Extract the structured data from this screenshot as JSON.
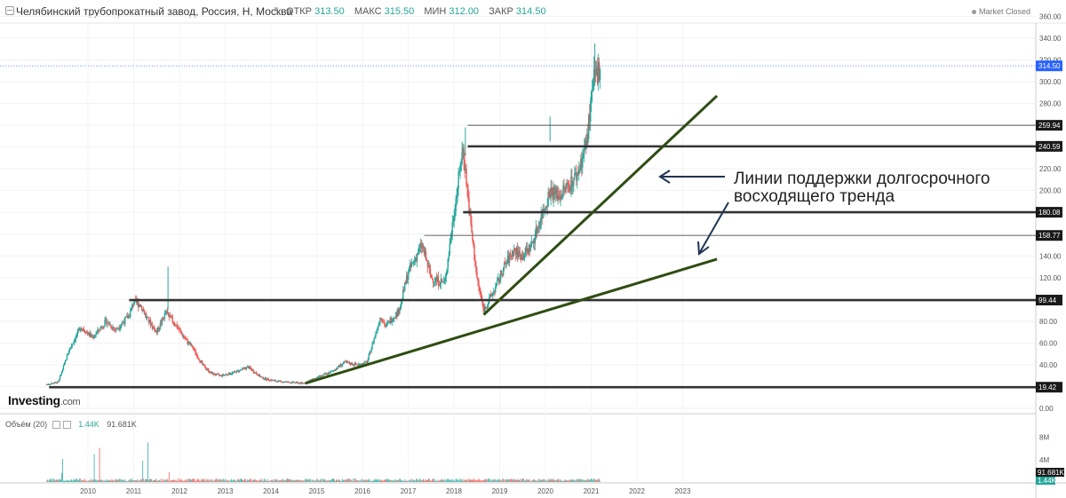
{
  "header": {
    "title": "Челябинский трубопрокатный завод, Россия, Н, Москва",
    "open_label": "ОТКР",
    "open_value": "313.50",
    "high_label": "МАКС",
    "high_value": "315.50",
    "low_label": "МИН",
    "low_value": "312.00",
    "close_label": "ЗАКР",
    "close_value": "314.50",
    "market_status": "Market Closed"
  },
  "logo": {
    "main": "Investing",
    "suffix": ".com"
  },
  "volume_legend": {
    "label": "Объём (20)",
    "value1": "1.44K",
    "value2": "91.681K"
  },
  "annotation": {
    "line1": "Линии поддержки долгосрочного",
    "line2": "восходящего тренда"
  },
  "chart_data": {
    "type": "candlestick",
    "y_axis": {
      "ylim": [
        -2,
        360
      ],
      "ticks": [
        "0.00",
        "20.00",
        "40.00",
        "60.00",
        "80.00",
        "100.00",
        "120.00",
        "140.00",
        "160.00",
        "180.00",
        "200.00",
        "220.00",
        "240.00",
        "260.00",
        "280.00",
        "300.00",
        "320.00",
        "340.00",
        "360.00"
      ],
      "tick_values": [
        0,
        20,
        40,
        60,
        80,
        100,
        120,
        140,
        160,
        180,
        200,
        220,
        240,
        260,
        280,
        300,
        320,
        340,
        360
      ]
    },
    "x_axis": {
      "ticks": [
        "2010",
        "2011",
        "2012",
        "2013",
        "2014",
        "2015",
        "2016",
        "2017",
        "2018",
        "2019",
        "2020",
        "2021",
        "2022",
        "2023"
      ],
      "tick_years": [
        2010,
        2011,
        2012,
        2013,
        2014,
        2015,
        2016,
        2017,
        2018,
        2019,
        2020,
        2021,
        2022,
        2023
      ]
    },
    "last_price": {
      "label": "314.50",
      "value": 314.5
    },
    "price_series_approx": [
      [
        2009.1,
        22
      ],
      [
        2009.35,
        24
      ],
      [
        2009.6,
        55
      ],
      [
        2009.85,
        75
      ],
      [
        2010.1,
        65
      ],
      [
        2010.4,
        80
      ],
      [
        2010.6,
        72
      ],
      [
        2010.9,
        85
      ],
      [
        2011.0,
        98
      ],
      [
        2011.15,
        95
      ],
      [
        2011.3,
        82
      ],
      [
        2011.5,
        70
      ],
      [
        2011.7,
        88
      ],
      [
        2011.9,
        78
      ],
      [
        2012.1,
        65
      ],
      [
        2012.3,
        55
      ],
      [
        2012.5,
        40
      ],
      [
        2012.7,
        32
      ],
      [
        2012.9,
        30
      ],
      [
        2013.2,
        33
      ],
      [
        2013.5,
        38
      ],
      [
        2013.8,
        28
      ],
      [
        2014.1,
        25
      ],
      [
        2014.4,
        24
      ],
      [
        2014.7,
        23
      ],
      [
        2015.0,
        28
      ],
      [
        2015.3,
        33
      ],
      [
        2015.6,
        42
      ],
      [
        2015.9,
        40
      ],
      [
        2016.1,
        42
      ],
      [
        2016.4,
        85
      ],
      [
        2016.5,
        75
      ],
      [
        2016.8,
        90
      ],
      [
        2017.0,
        125
      ],
      [
        2017.3,
        150
      ],
      [
        2017.5,
        120
      ],
      [
        2017.8,
        115
      ],
      [
        2018.0,
        180
      ],
      [
        2018.2,
        240
      ],
      [
        2018.35,
        175
      ],
      [
        2018.5,
        120
      ],
      [
        2018.65,
        90
      ],
      [
        2018.9,
        110
      ],
      [
        2019.1,
        130
      ],
      [
        2019.3,
        145
      ],
      [
        2019.5,
        140
      ],
      [
        2019.7,
        150
      ],
      [
        2019.9,
        175
      ],
      [
        2020.1,
        200
      ],
      [
        2020.3,
        195
      ],
      [
        2020.5,
        205
      ],
      [
        2020.7,
        215
      ],
      [
        2020.9,
        245
      ],
      [
        2021.05,
        300
      ],
      [
        2021.2,
        314.5
      ]
    ],
    "horizontal_levels": [
      {
        "label": "259.94",
        "value": 259.94,
        "start_year": 2018.3,
        "thick": false
      },
      {
        "label": "240.59",
        "value": 240.59,
        "start_year": 2018.3,
        "thick": true
      },
      {
        "label": "180.08",
        "value": 180.08,
        "start_year": 2018.2,
        "thick": true
      },
      {
        "label": "158.77",
        "value": 158.77,
        "start_year": 2017.35,
        "thick": false
      },
      {
        "label": "99.44",
        "value": 99.44,
        "start_year": 2010.9,
        "thick": true
      },
      {
        "label": "19.42",
        "value": 19.42,
        "start_year": 2009.15,
        "thick": true
      }
    ],
    "trend_lines": [
      {
        "from": [
          2014.75,
          23
        ],
        "to": [
          2023.75,
          137
        ]
      },
      {
        "from": [
          2018.65,
          86
        ],
        "to": [
          2023.75,
          287
        ]
      }
    ],
    "volume": {
      "ticks": [
        "4M",
        "8M"
      ],
      "tick_values": [
        4,
        8
      ],
      "last_labels": [
        "91.681K",
        "1.44K"
      ]
    }
  }
}
